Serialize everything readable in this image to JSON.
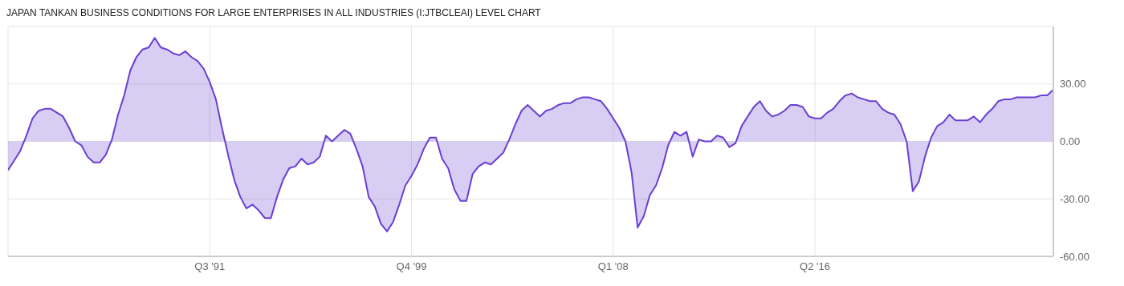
{
  "chart_data": {
    "type": "area",
    "title": "JAPAN TANKAN BUSINESS CONDITIONS FOR LARGE ENTERPRISES IN ALL INDUSTRIES (I:JTBCLEAI) LEVEL CHART",
    "x": [
      "1983-04",
      "1983-07",
      "1983-10",
      "1984-01",
      "1984-04",
      "1984-07",
      "1984-10",
      "1985-01",
      "1985-04",
      "1985-07",
      "1985-10",
      "1986-01",
      "1986-04",
      "1986-07",
      "1986-10",
      "1987-01",
      "1987-04",
      "1987-07",
      "1987-10",
      "1988-01",
      "1988-04",
      "1988-07",
      "1988-10",
      "1989-01",
      "1989-04",
      "1989-07",
      "1989-10",
      "1990-01",
      "1990-04",
      "1990-07",
      "1990-10",
      "1991-01",
      "1991-04",
      "1991-07",
      "1991-10",
      "1992-01",
      "1992-04",
      "1992-07",
      "1992-10",
      "1993-01",
      "1993-04",
      "1993-07",
      "1993-10",
      "1994-01",
      "1994-04",
      "1994-07",
      "1994-10",
      "1995-01",
      "1995-04",
      "1995-07",
      "1995-10",
      "1996-01",
      "1996-04",
      "1996-07",
      "1996-10",
      "1997-01",
      "1997-04",
      "1997-07",
      "1997-10",
      "1998-01",
      "1998-04",
      "1998-07",
      "1998-10",
      "1999-01",
      "1999-04",
      "1999-07",
      "1999-10",
      "2000-01",
      "2000-04",
      "2000-07",
      "2000-10",
      "2001-01",
      "2001-04",
      "2001-07",
      "2001-10",
      "2002-01",
      "2002-04",
      "2002-07",
      "2002-10",
      "2003-01",
      "2003-04",
      "2003-07",
      "2003-10",
      "2004-01",
      "2004-04",
      "2004-07",
      "2004-10",
      "2005-01",
      "2005-04",
      "2005-07",
      "2005-10",
      "2006-01",
      "2006-04",
      "2006-07",
      "2006-10",
      "2007-01",
      "2007-04",
      "2007-07",
      "2007-10",
      "2008-01",
      "2008-04",
      "2008-07",
      "2008-10",
      "2009-01",
      "2009-04",
      "2009-07",
      "2009-10",
      "2010-01",
      "2010-04",
      "2010-07",
      "2010-10",
      "2011-01",
      "2011-04",
      "2011-07",
      "2011-10",
      "2012-01",
      "2012-04",
      "2012-07",
      "2012-10",
      "2013-01",
      "2013-04",
      "2013-07",
      "2013-10",
      "2014-01",
      "2014-04",
      "2014-07",
      "2014-10",
      "2015-01",
      "2015-04",
      "2015-07",
      "2015-10",
      "2016-01",
      "2016-04",
      "2016-07",
      "2016-10",
      "2017-01",
      "2017-04",
      "2017-07",
      "2017-10",
      "2018-01",
      "2018-04",
      "2018-07",
      "2018-10",
      "2019-01",
      "2019-04",
      "2019-07",
      "2019-10",
      "2020-01",
      "2020-04",
      "2020-07",
      "2020-10",
      "2021-01",
      "2021-04",
      "2021-07",
      "2021-10",
      "2022-01",
      "2022-04",
      "2022-07",
      "2022-10",
      "2023-01",
      "2023-04",
      "2023-07",
      "2023-10",
      "2024-01",
      "2024-04",
      "2024-07",
      "2024-10",
      "2025-01",
      "2025-04",
      "2025-07",
      "2025-10",
      "2026-01"
    ],
    "series": [
      {
        "color": "#6a3fd1",
        "values": [
          -15,
          -10,
          -5,
          3,
          12,
          16,
          17,
          17,
          15,
          13,
          7,
          0,
          -2,
          -8,
          -11,
          -11,
          -7,
          1,
          14,
          24,
          37,
          44,
          48,
          49,
          54,
          49,
          48,
          46,
          45,
          47,
          44,
          42,
          38,
          31,
          22,
          7,
          -7,
          -20,
          -29,
          -35,
          -33,
          -36,
          -40,
          -40,
          -29,
          -20,
          -14,
          -13,
          -9,
          -12,
          -11,
          -8,
          3,
          0,
          3,
          6,
          4,
          -4,
          -13,
          -29,
          -34,
          -43,
          -47,
          -42,
          -33,
          -23,
          -18,
          -12,
          -4,
          2,
          2,
          -9,
          -14,
          -25,
          -31,
          -31,
          -17,
          -13,
          -11,
          -12,
          -9,
          -6,
          1,
          9,
          16,
          19,
          16,
          13,
          16,
          17,
          19,
          20,
          20,
          22,
          23,
          23,
          22,
          21,
          17,
          12,
          7,
          0,
          -16,
          -45,
          -39,
          -28,
          -23,
          -14,
          -2,
          5,
          3,
          5,
          -8,
          1,
          0,
          0,
          3,
          2,
          -3,
          -1,
          8,
          13,
          18,
          21,
          16,
          13,
          14,
          16,
          19,
          19,
          18,
          13,
          12,
          12,
          15,
          17,
          21,
          24,
          25,
          23,
          22,
          21,
          21,
          17,
          15,
          14,
          9,
          0,
          -26,
          -21,
          -8,
          2,
          8,
          10,
          14,
          11,
          11,
          11,
          13,
          10,
          14,
          17,
          21,
          22,
          22,
          23,
          23,
          23,
          23,
          24,
          24,
          27
        ]
      }
    ],
    "xlim": [
      "1983-04",
      "2026-01"
    ],
    "xticks": [
      {
        "value": "1991-07",
        "label": "Q3 '91"
      },
      {
        "value": "1999-10",
        "label": "Q4 '99"
      },
      {
        "value": "2008-01",
        "label": "Q1 '08"
      },
      {
        "value": "2016-04",
        "label": "Q2 '16"
      }
    ],
    "ylim": [
      -60,
      60
    ],
    "yticks": [
      {
        "value": -60,
        "label": "-60.00"
      },
      {
        "value": -30,
        "label": "-30.00"
      },
      {
        "value": 0,
        "label": "0.00"
      },
      {
        "value": 30,
        "label": "30.00"
      },
      {
        "value": 60,
        "label": null
      }
    ],
    "grid": true,
    "legend": false
  }
}
